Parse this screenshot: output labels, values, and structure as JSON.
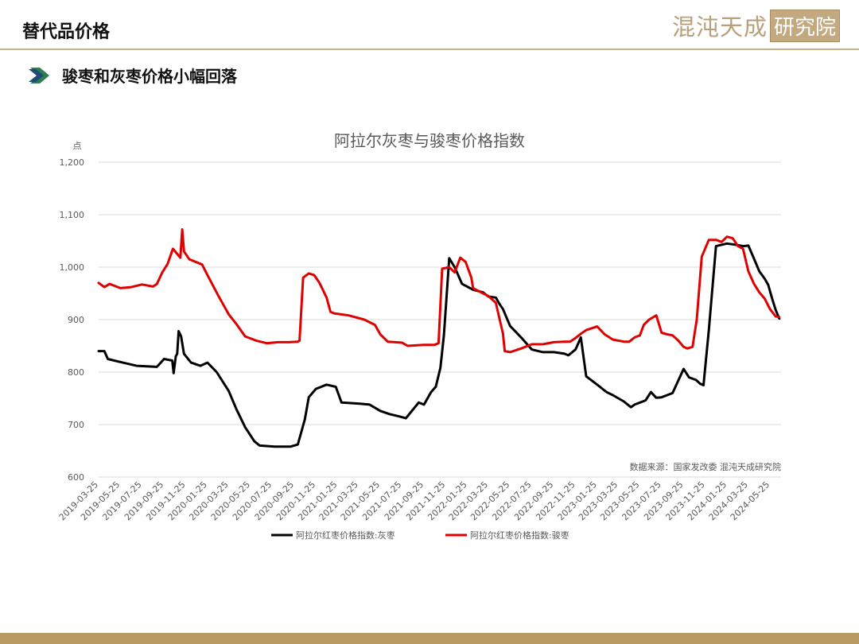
{
  "header": {
    "title": "替代品价格",
    "logo_text": "混沌天成",
    "logo_box_text": "研究院"
  },
  "subtitle": {
    "text": "骏枣和灰枣价格小幅回落"
  },
  "colors": {
    "accent": "#c8b08a",
    "bottom_bar": "#b89a63",
    "series_grey": "#000000",
    "series_junzao": "#e00000",
    "arrow_green": "#2e7d4f"
  },
  "chart_data": {
    "type": "line",
    "title": "阿拉尔灰枣与骏枣价格指数",
    "ylabel": "点",
    "ylim": [
      600,
      1200
    ],
    "yticks": [
      600,
      700,
      800,
      900,
      1000,
      1100,
      1200
    ],
    "ytick_labels": [
      "600",
      "700",
      "800",
      "900",
      "1,000",
      "1,100",
      "1,200"
    ],
    "xlim": [
      "2019-03-25",
      "2024-06-25"
    ],
    "xtick_labels": [
      "2019-03-25",
      "2019-05-25",
      "2019-07-25",
      "2019-09-25",
      "2019-11-25",
      "2020-01-25",
      "2020-03-25",
      "2020-05-25",
      "2020-07-25",
      "2020-09-25",
      "2020-11-25",
      "2021-01-25",
      "2021-03-25",
      "2021-05-25",
      "2021-07-25",
      "2021-09-25",
      "2021-11-25",
      "2022-01-25",
      "2022-03-25",
      "2022-05-25",
      "2022-07-25",
      "2022-09-25",
      "2022-11-25",
      "2023-01-25",
      "2023-03-25",
      "2023-05-25",
      "2023-07-25",
      "2023-09-25",
      "2023-11-25",
      "2024-01-25",
      "2024-03-25",
      "2024-05-25"
    ],
    "source": "数据来源：国家发改委   混沌天成研究院",
    "grid": true,
    "legend_position": "bottom",
    "series": [
      {
        "name": "阿拉尔红枣价格指数:灰枣",
        "color": "#000000",
        "x": [
          "2019-03-25",
          "2019-04-10",
          "2019-04-20",
          "2019-05-20",
          "2019-07-10",
          "2019-09-05",
          "2019-09-25",
          "2019-10-18",
          "2019-10-22",
          "2019-10-28",
          "2019-11-01",
          "2019-11-05",
          "2019-11-12",
          "2019-11-20",
          "2019-12-10",
          "2020-01-05",
          "2020-01-25",
          "2020-02-20",
          "2020-03-25",
          "2020-04-15",
          "2020-05-10",
          "2020-06-05",
          "2020-06-20",
          "2020-08-01",
          "2020-09-15",
          "2020-10-05",
          "2020-10-25",
          "2020-11-05",
          "2020-11-25",
          "2020-12-25",
          "2021-01-20",
          "2021-02-05",
          "2021-03-25",
          "2021-04-25",
          "2021-05-25",
          "2021-06-20",
          "2021-07-20",
          "2021-08-05",
          "2021-09-10",
          "2021-09-25",
          "2021-10-15",
          "2021-10-28",
          "2021-11-10",
          "2021-11-20",
          "2021-12-05",
          "2021-12-20",
          "2022-01-10",
          "2022-02-10",
          "2022-03-10",
          "2022-03-25",
          "2022-04-15",
          "2022-04-25",
          "2022-05-05",
          "2022-05-25",
          "2022-06-25",
          "2022-07-25",
          "2022-08-25",
          "2022-09-25",
          "2022-10-25",
          "2022-11-05",
          "2022-11-25",
          "2022-12-10",
          "2022-12-25",
          "2023-01-25",
          "2023-02-20",
          "2023-03-10",
          "2023-04-10",
          "2023-04-30",
          "2023-05-10",
          "2023-06-10",
          "2023-06-25",
          "2023-07-10",
          "2023-07-25",
          "2023-08-25",
          "2023-09-25",
          "2023-10-10",
          "2023-10-30",
          "2023-11-10",
          "2023-11-20",
          "2023-12-05",
          "2023-12-25",
          "2024-01-25",
          "2024-02-25",
          "2024-03-10",
          "2024-03-25",
          "2024-04-10",
          "2024-04-25",
          "2024-05-10",
          "2024-05-20",
          "2024-05-30",
          "2024-06-10",
          "2024-06-20"
        ],
        "values": [
          840,
          840,
          825,
          820,
          812,
          810,
          825,
          822,
          798,
          830,
          835,
          878,
          868,
          835,
          818,
          812,
          818,
          800,
          764,
          730,
          695,
          668,
          660,
          658,
          658,
          662,
          710,
          752,
          768,
          776,
          772,
          742,
          740,
          738,
          726,
          720,
          715,
          712,
          742,
          738,
          762,
          772,
          808,
          870,
          1017,
          1000,
          968,
          957,
          952,
          944,
          942,
          930,
          920,
          888,
          866,
          843,
          838,
          838,
          835,
          832,
          843,
          866,
          792,
          776,
          762,
          756,
          744,
          733,
          738,
          746,
          762,
          751,
          752,
          760,
          806,
          790,
          785,
          778,
          775,
          880,
          1040,
          1045,
          1042,
          1040,
          1041,
          1016,
          992,
          978,
          966,
          942,
          918,
          902
        ]
      },
      {
        "name": "阿拉尔红枣价格指数:骏枣",
        "color": "#e00000",
        "x": [
          "2019-03-25",
          "2019-04-10",
          "2019-04-25",
          "2019-05-25",
          "2019-06-25",
          "2019-07-25",
          "2019-08-25",
          "2019-09-05",
          "2019-09-20",
          "2019-10-05",
          "2019-10-20",
          "2019-11-10",
          "2019-11-15",
          "2019-11-20",
          "2019-12-05",
          "2020-01-10",
          "2020-01-25",
          "2020-02-25",
          "2020-03-25",
          "2020-04-15",
          "2020-05-10",
          "2020-06-10",
          "2020-07-10",
          "2020-08-10",
          "2020-09-10",
          "2020-10-05",
          "2020-10-10",
          "2020-10-20",
          "2020-11-05",
          "2020-11-20",
          "2020-12-05",
          "2020-12-25",
          "2021-01-05",
          "2021-01-15",
          "2021-02-25",
          "2021-04-10",
          "2021-05-10",
          "2021-05-25",
          "2021-06-15",
          "2021-07-25",
          "2021-08-10",
          "2021-09-25",
          "2021-10-25",
          "2021-11-05",
          "2021-11-15",
          "2021-12-05",
          "2021-12-20",
          "2022-01-05",
          "2022-01-20",
          "2022-02-05",
          "2022-02-10",
          "2022-03-10",
          "2022-03-25",
          "2022-04-15",
          "2022-05-05",
          "2022-05-10",
          "2022-05-25",
          "2022-06-25",
          "2022-07-25",
          "2022-08-25",
          "2022-09-25",
          "2022-10-25",
          "2022-11-10",
          "2022-11-25",
          "2022-12-10",
          "2022-12-25",
          "2023-01-25",
          "2023-02-15",
          "2023-03-10",
          "2023-04-10",
          "2023-04-25",
          "2023-05-10",
          "2023-05-25",
          "2023-06-05",
          "2023-06-20",
          "2023-07-10",
          "2023-07-25",
          "2023-08-10",
          "2023-08-25",
          "2023-09-10",
          "2023-09-25",
          "2023-10-05",
          "2023-10-20",
          "2023-11-01",
          "2023-11-15",
          "2023-12-05",
          "2023-12-25",
          "2024-01-10",
          "2024-01-25",
          "2024-02-10",
          "2024-02-25",
          "2024-03-10",
          "2024-03-25",
          "2024-04-10",
          "2024-04-25",
          "2024-05-10",
          "2024-05-25",
          "2024-06-10",
          "2024-06-20"
        ],
        "values": [
          970,
          962,
          968,
          960,
          962,
          967,
          963,
          968,
          990,
          1006,
          1035,
          1018,
          1072,
          1030,
          1015,
          1005,
          985,
          945,
          910,
          892,
          868,
          860,
          855,
          857,
          857,
          858,
          860,
          980,
          988,
          985,
          970,
          942,
          915,
          912,
          908,
          900,
          890,
          872,
          858,
          856,
          850,
          852,
          852,
          855,
          997,
          1000,
          990,
          1018,
          1010,
          980,
          960,
          950,
          945,
          932,
          873,
          840,
          838,
          845,
          853,
          853,
          857,
          858,
          858,
          865,
          873,
          880,
          887,
          872,
          862,
          858,
          858,
          866,
          870,
          890,
          900,
          908,
          875,
          872,
          870,
          860,
          848,
          845,
          848,
          900,
          1020,
          1052,
          1052,
          1048,
          1058,
          1055,
          1040,
          1035,
          992,
          968,
          952,
          940,
          920,
          906,
          905
        ]
      }
    ]
  }
}
